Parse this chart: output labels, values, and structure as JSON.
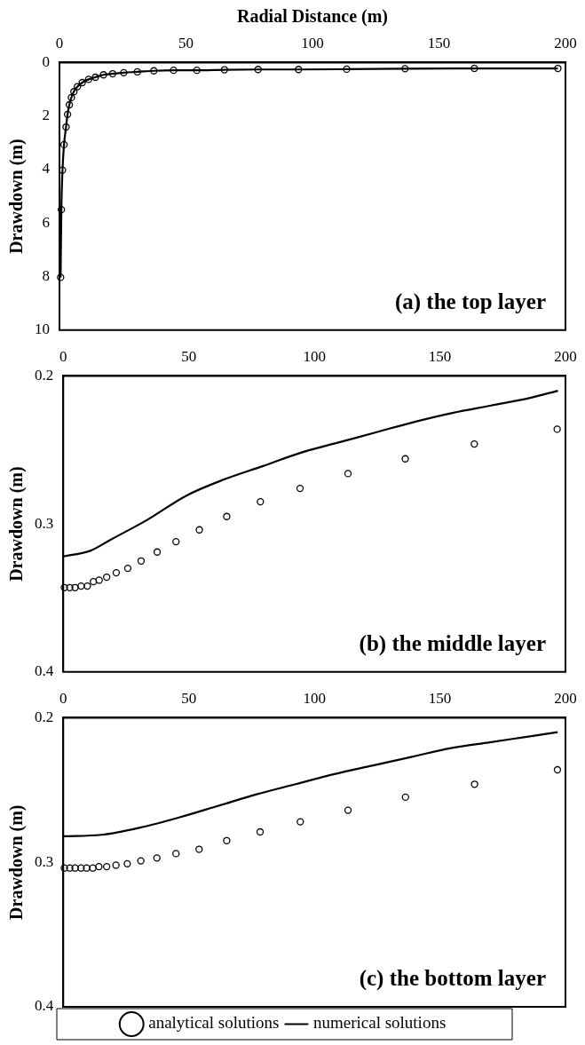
{
  "chart_data": [
    {
      "type": "scatter",
      "xlabel": "Radial Distance (m)",
      "ylabel": "Drawdown (m)",
      "annotations": [
        "(a) the top layer"
      ],
      "xlim": [
        0,
        200
      ],
      "xticks": [
        0,
        50,
        100,
        150,
        200
      ],
      "ylim": [
        10,
        0
      ],
      "yticks": [
        0,
        2,
        4,
        6,
        8,
        10
      ],
      "grid": false,
      "legend": false,
      "x": [
        0.45,
        0.75,
        1.2,
        1.8,
        2.6,
        3.2,
        3.9,
        4.7,
        5.7,
        7.1,
        9,
        11.5,
        14.2,
        17.4,
        21,
        25.4,
        30.8,
        37.3,
        45.1,
        54.3,
        65.2,
        78.5,
        94.5,
        113.5,
        136.6,
        164,
        197
      ],
      "series": [
        {
          "marker": "circle",
          "color": "#000000",
          "values": [
            8.03,
            5.5,
            4.02,
            3.07,
            2.41,
            1.94,
            1.58,
            1.31,
            1.09,
            0.9,
            0.75,
            0.63,
            0.55,
            0.46,
            0.42,
            0.38,
            0.35,
            0.31,
            0.29,
            0.29,
            0.27,
            0.26,
            0.26,
            0.25,
            0.23,
            0.22,
            0.22
          ]
        },
        {
          "type": "line",
          "marker": "none",
          "color": "#000000",
          "values": [
            8.03,
            5.5,
            4.02,
            3.07,
            2.41,
            1.94,
            1.58,
            1.31,
            1.09,
            0.9,
            0.75,
            0.63,
            0.55,
            0.46,
            0.42,
            0.38,
            0.35,
            0.31,
            0.29,
            0.29,
            0.27,
            0.26,
            0.26,
            0.25,
            0.23,
            0.22,
            0.22
          ]
        }
      ]
    },
    {
      "type": "scatter",
      "ylabel": "Drawdown (m)",
      "annotations": [
        "(b) the middle layer"
      ],
      "xlim": [
        0,
        200
      ],
      "xticks": [
        0,
        50,
        100,
        150,
        200
      ],
      "ylim": [
        0.4,
        0.2
      ],
      "yticks": [
        0.2,
        0.3,
        0.4
      ],
      "grid": false,
      "legend": false,
      "x": [
        0.45,
        2.6,
        4.7,
        7.1,
        9.6,
        12,
        14.3,
        17.3,
        21.1,
        25.7,
        31,
        37.4,
        44.9,
        54.2,
        65.1,
        78.5,
        94.3,
        113.4,
        136.2,
        163.7,
        196.7
      ],
      "series": [
        {
          "marker": "circle",
          "color": "#000000",
          "values": [
            0.343,
            0.343,
            0.343,
            0.342,
            0.342,
            0.339,
            0.338,
            0.336,
            0.333,
            0.33,
            0.325,
            0.319,
            0.312,
            0.304,
            0.295,
            0.285,
            0.276,
            0.266,
            0.256,
            0.246,
            0.236
          ]
        },
        {
          "type": "line",
          "marker": "none",
          "color": "#000000",
          "x": [
            0,
            11,
            18.5,
            33.7,
            48.9,
            64,
            79.3,
            94.4,
            109.6,
            124.8,
            140,
            155,
            170.4,
            185.6,
            197
          ],
          "values": [
            0.322,
            0.318,
            0.311,
            0.297,
            0.281,
            0.27,
            0.261,
            0.252,
            0.245,
            0.238,
            0.231,
            0.225,
            0.22,
            0.215,
            0.21
          ]
        }
      ]
    },
    {
      "type": "scatter",
      "ylabel": "Drawdown (m)",
      "annotations": [
        "(c) the bottom layer"
      ],
      "xlim": [
        0,
        200
      ],
      "xticks": [
        0,
        50,
        100,
        150,
        200
      ],
      "ylim": [
        0.4,
        0.2
      ],
      "yticks": [
        0.2,
        0.3,
        0.4
      ],
      "grid": false,
      "legend": "bottom",
      "x": [
        0.45,
        2.6,
        4.7,
        7.1,
        9.3,
        11.8,
        14.2,
        17.3,
        21,
        25.5,
        30.9,
        37.3,
        44.9,
        54.1,
        65.1,
        78.4,
        94.4,
        113.4,
        136.3,
        163.8,
        196.8
      ],
      "series": [
        {
          "name": "analytical solutions",
          "marker": "circle",
          "color": "#000000",
          "values": [
            0.304,
            0.304,
            0.304,
            0.304,
            0.304,
            0.304,
            0.303,
            0.303,
            0.302,
            0.301,
            0.299,
            0.297,
            0.294,
            0.291,
            0.285,
            0.279,
            0.272,
            0.264,
            0.255,
            0.246,
            0.236
          ]
        },
        {
          "type": "line",
          "name": "numerical solutions",
          "marker": "none",
          "color": "#000000",
          "x": [
            0,
            15.2,
            30.6,
            46.1,
            61.6,
            77,
            92.5,
            108,
            123.4,
            138.9,
            154.4,
            169.8,
            185.3,
            196.9
          ],
          "values": [
            0.282,
            0.281,
            0.276,
            0.269,
            0.261,
            0.253,
            0.246,
            0.239,
            0.233,
            0.227,
            0.221,
            0.217,
            0.213,
            0.21
          ]
        }
      ]
    }
  ]
}
